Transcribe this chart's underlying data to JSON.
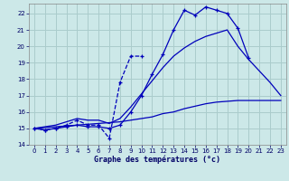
{
  "title": "Graphe des températures (°c)",
  "background_color": "#cce8e8",
  "grid_color": "#aacccc",
  "line_color": "#0000bb",
  "xlim": [
    -0.5,
    23.5
  ],
  "ylim": [
    14,
    22.6
  ],
  "yticks": [
    14,
    15,
    16,
    17,
    18,
    19,
    20,
    21,
    22
  ],
  "xticks": [
    0,
    1,
    2,
    3,
    4,
    5,
    6,
    7,
    8,
    9,
    10,
    11,
    12,
    13,
    14,
    15,
    16,
    17,
    18,
    19,
    20,
    21,
    22,
    23
  ],
  "s1_x": [
    0,
    1,
    2,
    3,
    4,
    5,
    6,
    7,
    8,
    9,
    10,
    11,
    12,
    13,
    14,
    15,
    16,
    17,
    18,
    19,
    20
  ],
  "s1_y": [
    15.0,
    14.9,
    15.0,
    15.1,
    15.2,
    15.1,
    15.1,
    15.0,
    15.2,
    16.0,
    17.0,
    18.3,
    19.5,
    21.0,
    22.2,
    21.9,
    22.4,
    22.2,
    22.0,
    21.1,
    19.3
  ],
  "s2_x": [
    0,
    1,
    2,
    3,
    4,
    5,
    6,
    7,
    8,
    9,
    10
  ],
  "s2_y": [
    15.0,
    14.9,
    15.0,
    15.2,
    15.5,
    15.2,
    15.2,
    14.4,
    17.8,
    19.4,
    19.4
  ],
  "s3_x": [
    0,
    1,
    2,
    3,
    4,
    5,
    6,
    7,
    8,
    9,
    10,
    11,
    12,
    13,
    14,
    15,
    16,
    17,
    18,
    19,
    20,
    21,
    22,
    23
  ],
  "s3_y": [
    15.0,
    15.05,
    15.1,
    15.15,
    15.2,
    15.25,
    15.3,
    15.35,
    15.4,
    15.5,
    15.6,
    15.7,
    15.9,
    16.0,
    16.2,
    16.35,
    16.5,
    16.6,
    16.65,
    16.7,
    16.7,
    16.7,
    16.7,
    16.7
  ],
  "s4_x": [
    0,
    1,
    2,
    3,
    4,
    5,
    6,
    7,
    8,
    9,
    10,
    11,
    12,
    13,
    14,
    15,
    16,
    17,
    18,
    19,
    20,
    21,
    22,
    23
  ],
  "s4_y": [
    15.0,
    15.1,
    15.2,
    15.4,
    15.6,
    15.5,
    15.5,
    15.3,
    15.6,
    16.3,
    17.1,
    17.9,
    18.7,
    19.4,
    19.9,
    20.3,
    20.6,
    20.8,
    21.0,
    20.0,
    19.2,
    18.5,
    17.8,
    17.0
  ]
}
